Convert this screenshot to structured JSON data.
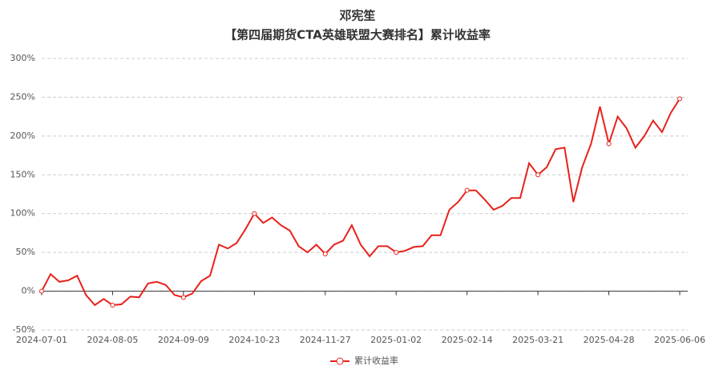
{
  "chart_data": {
    "type": "line",
    "title": "邓宪笙",
    "subtitle": "【第四届期货CTA英雄联盟大赛排名】累计收益率",
    "categories": [
      "2024-07-01",
      null,
      null,
      null,
      null,
      null,
      null,
      null,
      "2024-08-05",
      null,
      null,
      null,
      null,
      null,
      null,
      null,
      "2024-09-09",
      null,
      null,
      null,
      null,
      null,
      null,
      null,
      "2024-10-23",
      null,
      null,
      null,
      null,
      null,
      null,
      null,
      "2024-11-27",
      null,
      null,
      null,
      null,
      null,
      null,
      null,
      "2025-01-02",
      null,
      null,
      null,
      null,
      null,
      null,
      null,
      "2025-02-14",
      null,
      null,
      null,
      null,
      null,
      null,
      null,
      "2025-03-21",
      null,
      null,
      null,
      null,
      null,
      null,
      null,
      "2025-04-28",
      null,
      null,
      null,
      null,
      null,
      null,
      null,
      "2025-06-06"
    ],
    "series": [
      {
        "name": "累计收益率",
        "color": "#e8211b",
        "values": [
          0,
          22,
          12,
          14,
          20,
          -5,
          -18,
          -10,
          -18,
          -17,
          -7,
          -8,
          10,
          12,
          8,
          -5,
          -8,
          -3,
          13,
          20,
          60,
          55,
          62,
          80,
          100,
          88,
          95,
          85,
          78,
          58,
          50,
          60,
          48,
          60,
          65,
          85,
          60,
          45,
          58,
          58,
          50,
          52,
          57,
          58,
          72,
          72,
          105,
          115,
          130,
          130,
          118,
          105,
          110,
          120,
          120,
          165,
          150,
          160,
          183,
          185,
          115,
          160,
          190,
          238,
          190,
          225,
          210,
          185,
          200,
          220,
          205,
          230,
          248
        ]
      }
    ],
    "ylim": [
      -50,
      300
    ],
    "yticks": [
      {
        "value": -50,
        "label": "-50%"
      },
      {
        "value": 0,
        "label": "0%"
      },
      {
        "value": 50,
        "label": "50%"
      },
      {
        "value": 100,
        "label": "100%"
      },
      {
        "value": 150,
        "label": "150%"
      },
      {
        "value": 200,
        "label": "200%"
      },
      {
        "value": 250,
        "label": "250%"
      },
      {
        "value": 300,
        "label": "300%"
      }
    ],
    "grid": true
  }
}
